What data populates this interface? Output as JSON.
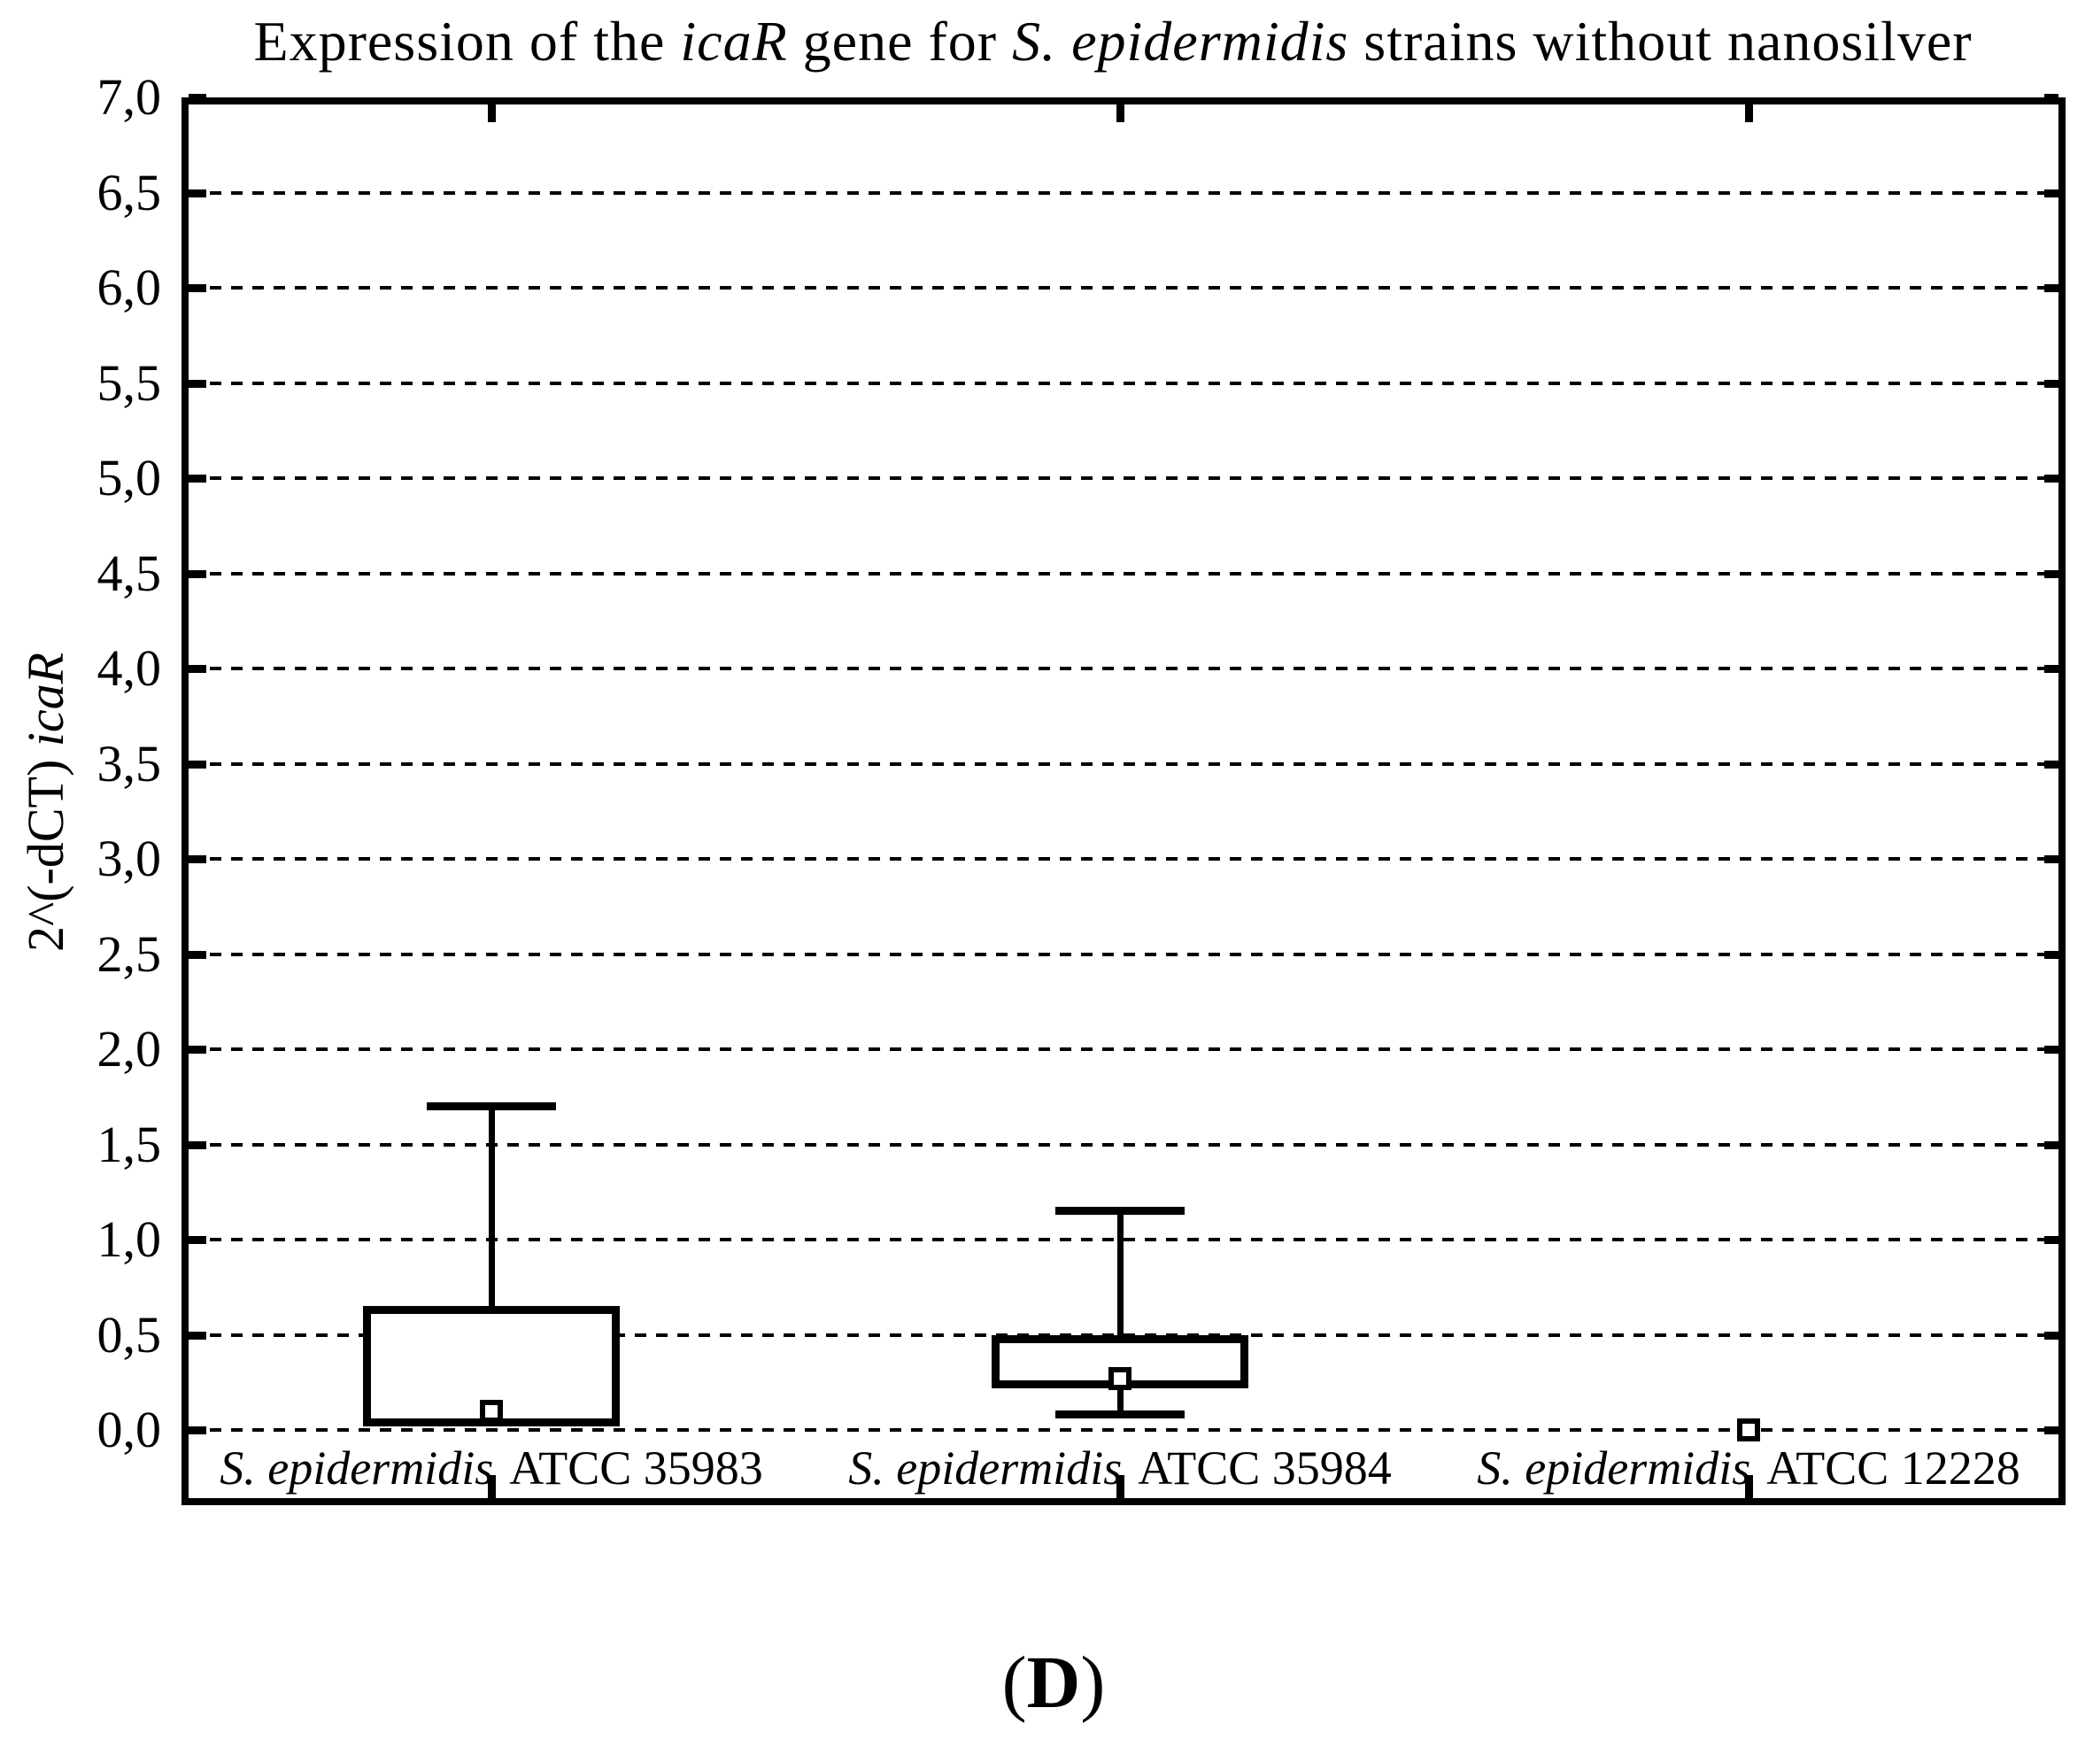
{
  "colors": {
    "ink": "#000000",
    "background": "#ffffff"
  },
  "figure": {
    "title_parts": [
      {
        "text": "Expression of the ",
        "italic": false
      },
      {
        "text": "icaR",
        "italic": true
      },
      {
        "text": " gene for ",
        "italic": false
      },
      {
        "text": "S. epidermidis",
        "italic": true
      },
      {
        "text": " strains without nanosilver",
        "italic": false
      }
    ],
    "y_axis": {
      "label_parts": [
        {
          "text": "2^(-dCT) ",
          "italic": false
        },
        {
          "text": "icaR",
          "italic": true
        }
      ],
      "tick_labels": [
        "7,0",
        "6,5",
        "6,0",
        "5,5",
        "5,0",
        "4,5",
        "4,0",
        "3,5",
        "3,0",
        "2,5",
        "2,0",
        "1,5",
        "1,0",
        "0,5",
        "0,0"
      ]
    },
    "x_axis": {
      "category_parts": [
        [
          {
            "text": "S. epidermidis",
            "italic": true
          },
          {
            "text": "ATCC 35983",
            "italic": false
          }
        ],
        [
          {
            "text": "S. epidermidis",
            "italic": true
          },
          {
            "text": "ATCC 35984",
            "italic": false
          }
        ],
        [
          {
            "text": "S. epidermidis",
            "italic": true
          },
          {
            "text": "ATCC 12228",
            "italic": false
          }
        ]
      ]
    },
    "caption_parts": [
      {
        "text": "(",
        "bold": false
      },
      {
        "text": "D",
        "bold": true
      },
      {
        "text": ")",
        "bold": false
      }
    ]
  },
  "chart_data": {
    "type": "box",
    "title": "Expression of the icaR gene for S. epidermidis strains without nanosilver",
    "xlabel": "",
    "ylabel": "2^(-dCT) icaR",
    "ylim": [
      0.0,
      7.0
    ],
    "ytick_step": 0.5,
    "ytick_decimal_separator": ",",
    "grid": "horizontal-dashed",
    "legend": "none",
    "marker_style": "open-square",
    "categories": [
      "S. epidermidis ATCC 35983",
      "S. epidermidis ATCC 35984",
      "S. epidermidis ATCC 12228"
    ],
    "series": [
      {
        "name": "S. epidermidis ATCC 35983",
        "median_marker": 0.1,
        "q1": 0.02,
        "q3": 0.65,
        "whisker_low": 0.0,
        "whisker_high": 1.7
      },
      {
        "name": "S. epidermidis ATCC 35984",
        "median_marker": 0.27,
        "q1": 0.22,
        "q3": 0.5,
        "whisker_low": 0.08,
        "whisker_high": 1.15
      },
      {
        "name": "S. epidermidis ATCC 12228",
        "median_marker": 0.0,
        "q1": null,
        "q3": null,
        "whisker_low": null,
        "whisker_high": null
      }
    ]
  }
}
